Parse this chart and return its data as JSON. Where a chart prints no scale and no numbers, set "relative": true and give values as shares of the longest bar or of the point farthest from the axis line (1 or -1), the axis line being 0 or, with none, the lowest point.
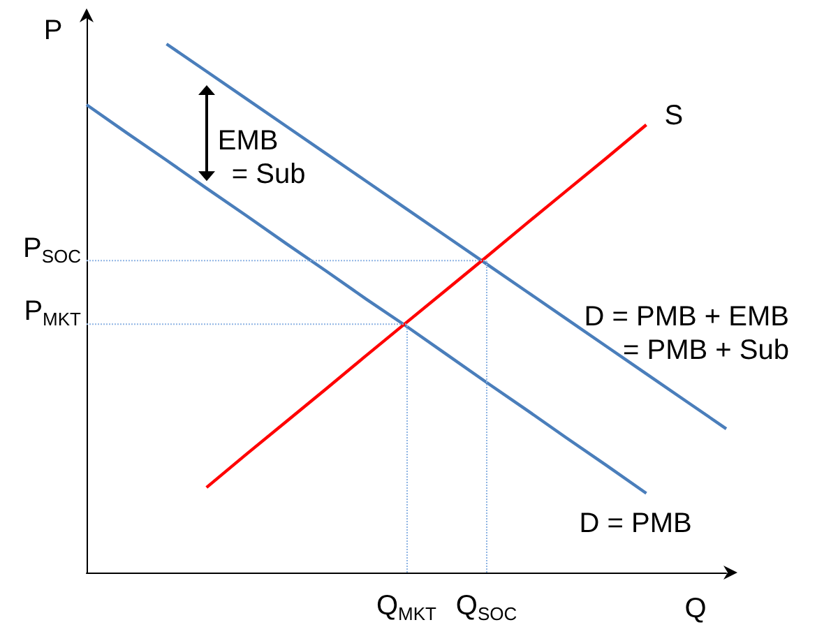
{
  "chart_data": {
    "type": "line",
    "relative": true,
    "xlabel": "Q",
    "ylabel": "P",
    "categories": [
      null,
      null,
      null,
      null,
      null,
      null,
      null,
      null,
      "Q$_{MKT}$",
      null,
      "Q$_{SOC}$",
      null,
      null,
      null,
      null,
      null,
      null
    ],
    "grid": false,
    "legend": false,
    "marker": "none",
    "line_style": "solid",
    "series": [
      {
        "name": "D = PMB + EMB\n= PMB + Sub",
        "color": "#4a7ebb",
        "values": [
          null,
          null,
          1,
          0.948,
          0.896,
          0.844,
          0.792,
          0.74,
          0.688,
          0.636,
          0.584,
          0.532,
          0.48,
          0.428,
          0.376,
          0.324,
          0.272
        ]
      },
      {
        "name": "D = PMB",
        "color": "#4a7ebb",
        "values": [
          0.885,
          0.832,
          0.78,
          0.727,
          0.675,
          0.622,
          0.57,
          0.517,
          0.466,
          0.413,
          0.36,
          0.308,
          0.255,
          0.203,
          0.15,
          null,
          null
        ]
      },
      {
        "name": "S",
        "color": "#ff0000",
        "values": [
          null,
          null,
          null,
          0.161,
          0.224,
          0.286,
          0.348,
          0.411,
          0.473,
          0.535,
          0.597,
          0.66,
          0.722,
          0.784,
          0.847,
          null,
          null
        ]
      },
      {
        "color": "#8eb4e3",
        "line_style": "dotted",
        "values": [
          0.59,
          0.59,
          0.59,
          0.59,
          0.59,
          0.59,
          0.59,
          0.59,
          0.59,
          0.59,
          0.59,
          null,
          null,
          null,
          null,
          null,
          null
        ]
      },
      {
        "color": "#8eb4e3",
        "line_style": "dotted",
        "values": [
          0.47,
          0.47,
          0.47,
          0.47,
          0.47,
          0.47,
          0.47,
          0.47,
          0.47,
          null,
          null,
          null,
          null,
          null,
          null,
          null,
          null
        ]
      }
    ],
    "ref_lines": [
      {
        "axis": "x",
        "value": "Q$_{SOC}$",
        "color": "#8eb4e3",
        "line_style": "dotted"
      },
      {
        "axis": "x",
        "value": "Q$_{MKT}$",
        "color": "#8eb4e3",
        "line_style": "dotted"
      }
    ],
    "annotations": [
      "EMB\n= Sub",
      "P$_{SOC}$",
      "P$_{MKT}$"
    ]
  }
}
